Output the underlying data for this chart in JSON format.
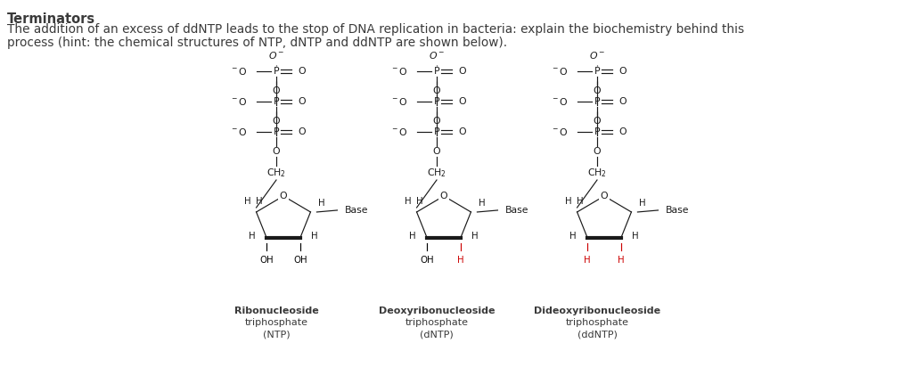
{
  "title": "Terminators",
  "body_line1": "The addition of an excess of ddNTP leads to the stop of DNA replication in bacteria: explain the biochemistry behind this",
  "body_line2": "process (hint: the chemical structures of NTP, dNTP and ddNTP are shown below).",
  "title_fontsize": 10.5,
  "body_fontsize": 9.8,
  "text_color": "#3a3a3a",
  "bg_color": "#ffffff",
  "mol_centers": [
    310,
    490,
    670
  ],
  "oh_labels_ntp": [
    "OH",
    "OH"
  ],
  "oh_labels_dntp": [
    "OH",
    "H"
  ],
  "oh_labels_ddntp": [
    "H",
    "H"
  ],
  "oh_colors_ntp": [
    "#000000",
    "#000000"
  ],
  "oh_colors_dntp": [
    "#000000",
    "#cc0000"
  ],
  "oh_colors_ddntp": [
    "#cc0000",
    "#cc0000"
  ],
  "mol_name_lines": [
    [
      "Ribonucleoside",
      "triphosphate",
      "(NTP)"
    ],
    [
      "Deoxyribonucleoside",
      "triphosphate",
      "(dNTP)"
    ],
    [
      "Dideoxyribonucleoside",
      "triphosphate",
      "(ddNTP)"
    ]
  ],
  "line_color": "#1a1a1a",
  "label_fontsize": 7.8,
  "mol_label_fontsize": 8.0
}
